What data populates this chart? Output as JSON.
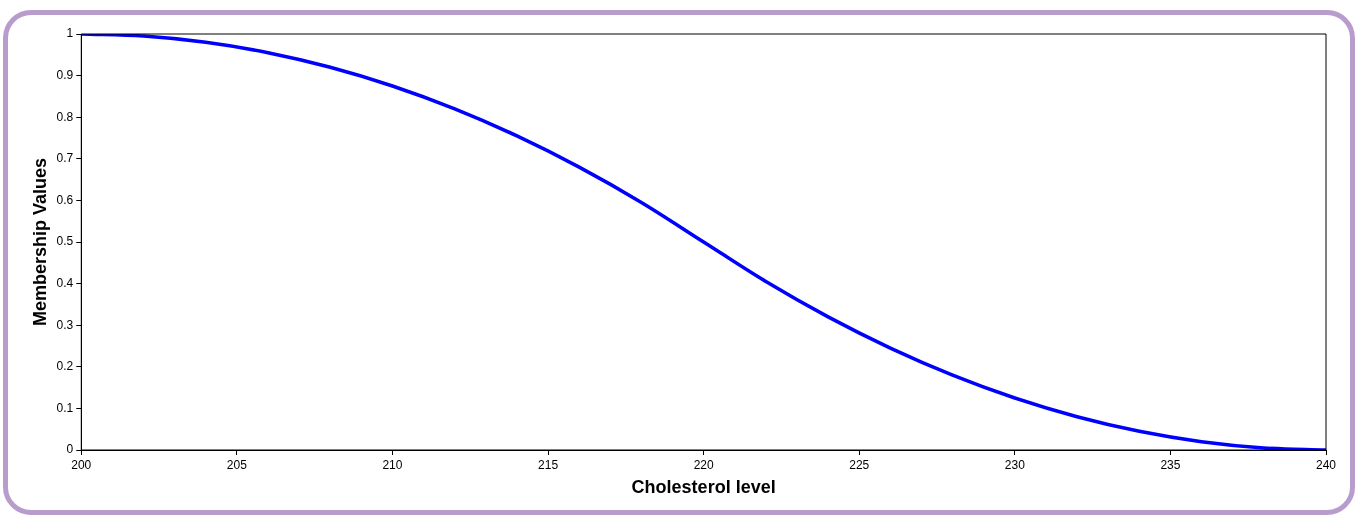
{
  "chart_data": {
    "type": "line",
    "xlabel": "Cholesterol level",
    "ylabel": "Membership Values",
    "series": [
      {
        "color": "#0000ff",
        "x": [
          200,
          202,
          204,
          206,
          208,
          210,
          212,
          214,
          216,
          218,
          220,
          222,
          224,
          226,
          228,
          230,
          232,
          234,
          236,
          238,
          240
        ],
        "values": [
          1,
          0.995,
          0.98,
          0.955,
          0.92,
          0.875,
          0.82,
          0.755,
          0.68,
          0.595,
          0.5,
          0.405,
          0.32,
          0.245,
          0.18,
          0.125,
          0.08,
          0.045,
          0.02,
          0.005,
          0
        ]
      }
    ],
    "xlim": [
      200,
      240
    ],
    "xticks": [
      200,
      205,
      210,
      215,
      220,
      225,
      230,
      235,
      240
    ],
    "ylim": [
      0,
      1
    ],
    "yticks": [
      0,
      0.1,
      0.2,
      0.3,
      0.4,
      0.5,
      0.6,
      0.7,
      0.8,
      0.9,
      1
    ],
    "grid": false,
    "legend": false,
    "marker": "none",
    "line_style": "solid"
  }
}
